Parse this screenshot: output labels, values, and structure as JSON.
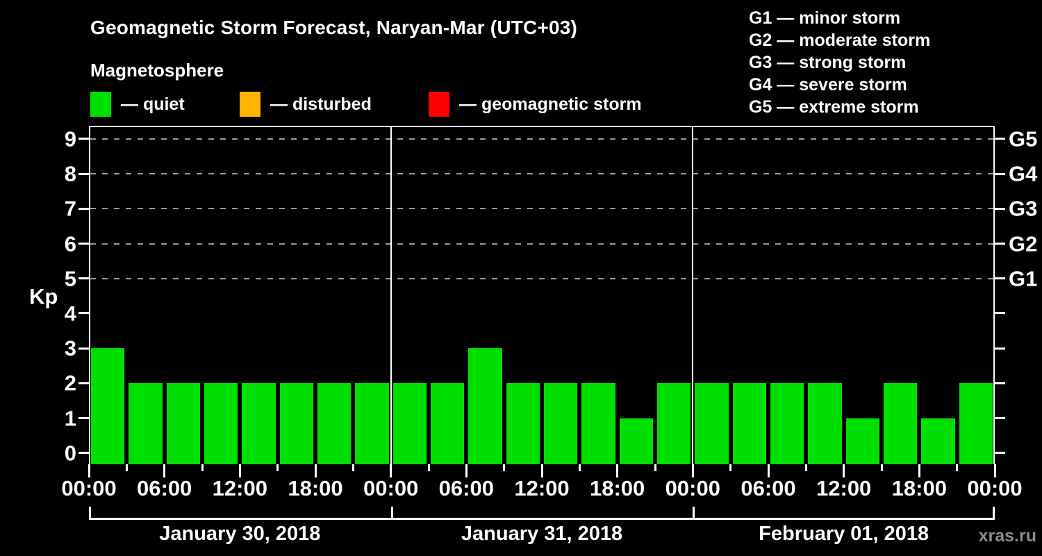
{
  "title": "Geomagnetic Storm Forecast, Naryan-Mar (UTC+03)",
  "subtitle": "Magnetosphere",
  "legend_dash": "—",
  "condition_legend": [
    {
      "label": "quiet",
      "color": "#00e000"
    },
    {
      "label": "disturbed",
      "color": "#ffb400"
    },
    {
      "label": "geomagnetic storm",
      "color": "#ff0000"
    }
  ],
  "storm_scale_legend": [
    {
      "code": "G1",
      "description": "minor storm"
    },
    {
      "code": "G2",
      "description": "moderate storm"
    },
    {
      "code": "G3",
      "description": "strong storm"
    },
    {
      "code": "G4",
      "description": "severe storm"
    },
    {
      "code": "G5",
      "description": "extreme storm"
    }
  ],
  "watermark": "xras.ru",
  "chart_data": {
    "type": "bar",
    "ylabel": "Kp",
    "ylim": [
      0,
      9
    ],
    "yticks": [
      0,
      1,
      2,
      3,
      4,
      5,
      6,
      7,
      8,
      9
    ],
    "gridlines_at_kp": [
      5,
      6,
      7,
      8,
      9
    ],
    "right_axis_labels": [
      {
        "kp": 5,
        "label": "G1"
      },
      {
        "kp": 6,
        "label": "G2"
      },
      {
        "kp": 7,
        "label": "G3"
      },
      {
        "kp": 8,
        "label": "G4"
      },
      {
        "kp": 9,
        "label": "G5"
      }
    ],
    "bar_color": "#00e000",
    "grid_color": "#9a9a9a",
    "hours_per_bar": 3,
    "x_tick_labels_per_day": [
      "00:00",
      "06:00",
      "12:00",
      "18:00"
    ],
    "x_axis_end_label": "00:00",
    "days": [
      {
        "date": "January 30, 2018",
        "values": [
          3,
          2,
          2,
          2,
          2,
          2,
          2,
          2
        ]
      },
      {
        "date": "January 31, 2018",
        "values": [
          2,
          2,
          3,
          2,
          2,
          2,
          1,
          2
        ]
      },
      {
        "date": "February 01, 2018",
        "values": [
          2,
          2,
          2,
          2,
          1,
          2,
          1,
          2
        ]
      }
    ]
  }
}
